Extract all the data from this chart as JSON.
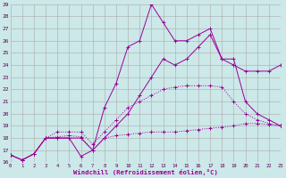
{
  "background_color": "#cce8e8",
  "grid_color": "#aaaaaa",
  "line_color": "#990099",
  "xlabel": "Windchill (Refroidissement éolien,°C)",
  "x_ticks": [
    0,
    1,
    2,
    3,
    4,
    5,
    6,
    7,
    8,
    9,
    10,
    11,
    12,
    13,
    14,
    15,
    16,
    17,
    18,
    19,
    20,
    21,
    22,
    23
  ],
  "y_ticks": [
    16,
    17,
    18,
    19,
    20,
    21,
    22,
    23,
    24,
    25,
    26,
    27,
    28,
    29
  ],
  "xlim": [
    0,
    23
  ],
  "ylim": [
    16,
    29
  ],
  "series": [
    {
      "y": [
        16.6,
        16.2,
        16.7,
        18.0,
        18.1,
        18.2,
        18.1,
        17.0,
        18.0,
        18.2,
        18.3,
        18.4,
        18.5,
        18.5,
        18.5,
        18.6,
        18.7,
        18.8,
        18.9,
        19.0,
        19.2,
        19.2,
        19.1,
        19.0
      ],
      "style": "dotted"
    },
    {
      "y": [
        16.6,
        16.2,
        16.7,
        18.0,
        18.5,
        18.5,
        18.5,
        17.5,
        18.5,
        19.5,
        20.5,
        21.0,
        21.5,
        22.0,
        22.2,
        22.3,
        22.3,
        22.3,
        22.2,
        21.0,
        20.0,
        19.5,
        19.2,
        19.0
      ],
      "style": "dotted"
    },
    {
      "y": [
        16.6,
        16.2,
        16.7,
        18.0,
        18.0,
        18.0,
        16.5,
        17.0,
        20.5,
        22.5,
        25.5,
        26.0,
        29.0,
        27.5,
        26.0,
        26.0,
        26.5,
        27.0,
        24.5,
        24.5,
        21.0,
        20.0,
        19.5,
        19.0
      ],
      "style": "solid"
    },
    {
      "y": [
        16.6,
        16.2,
        16.7,
        18.0,
        18.0,
        18.0,
        18.0,
        17.0,
        18.0,
        19.0,
        20.0,
        21.5,
        23.0,
        24.5,
        24.0,
        24.5,
        25.5,
        26.5,
        24.5,
        24.0,
        23.5,
        23.5,
        23.5,
        24.0
      ],
      "style": "solid"
    }
  ]
}
